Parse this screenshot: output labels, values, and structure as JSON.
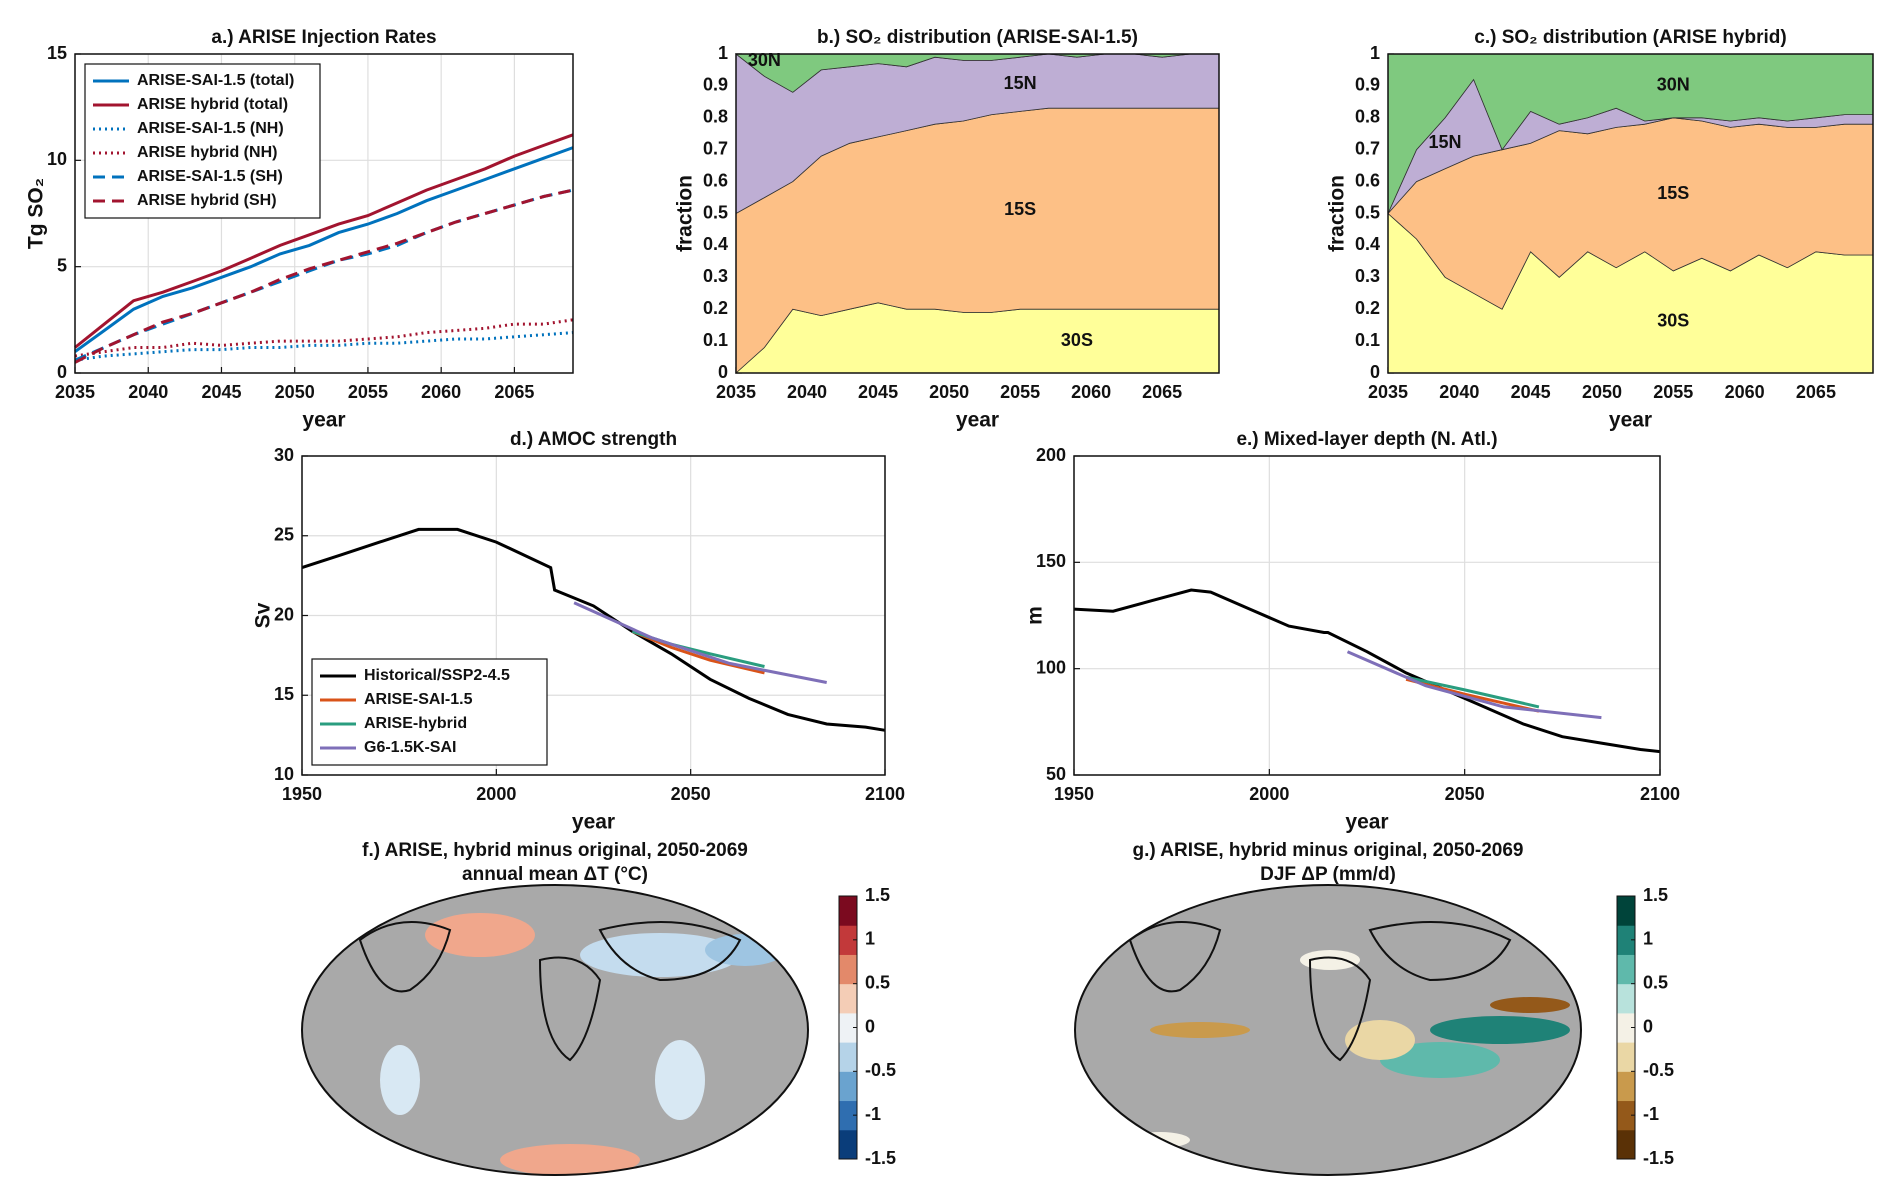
{
  "chart_data": [
    {
      "type": "line",
      "title": "a.) ARISE Injection Rates",
      "xlabel": "year",
      "ylabel": "Tg SO₂",
      "xlim": [
        2035,
        2069
      ],
      "xticks": [
        2035,
        2040,
        2045,
        2050,
        2055,
        2060,
        2065
      ],
      "ylim": [
        0,
        15
      ],
      "yticks": [
        0,
        5,
        10,
        15
      ],
      "grid": true,
      "legend": "upper left",
      "x": [
        2035,
        2037,
        2039,
        2041,
        2043,
        2045,
        2047,
        2049,
        2051,
        2053,
        2055,
        2057,
        2059,
        2061,
        2063,
        2065,
        2067,
        2069
      ],
      "series": [
        {
          "name": "ARISE-SAI-1.5 (total)",
          "color": "#0072bd",
          "linestyle": "solid",
          "values": [
            1.0,
            2.0,
            3.0,
            3.6,
            4.0,
            4.5,
            5.0,
            5.6,
            6.0,
            6.6,
            7.0,
            7.5,
            8.1,
            8.6,
            9.1,
            9.6,
            10.1,
            10.6
          ]
        },
        {
          "name": "ARISE hybrid (total)",
          "color": "#a2142f",
          "linestyle": "solid",
          "values": [
            1.2,
            2.3,
            3.4,
            3.8,
            4.3,
            4.8,
            5.4,
            6.0,
            6.5,
            7.0,
            7.4,
            8.0,
            8.6,
            9.1,
            9.6,
            10.2,
            10.7,
            11.2
          ]
        },
        {
          "name": "ARISE-SAI-1.5 (NH)",
          "color": "#0072bd",
          "linestyle": "dotted",
          "values": [
            0.6,
            0.8,
            0.9,
            1.0,
            1.1,
            1.1,
            1.2,
            1.2,
            1.3,
            1.3,
            1.4,
            1.4,
            1.5,
            1.6,
            1.6,
            1.7,
            1.8,
            1.9
          ]
        },
        {
          "name": "ARISE hybrid (NH)",
          "color": "#a2142f",
          "linestyle": "dotted",
          "values": [
            0.8,
            1.0,
            1.2,
            1.2,
            1.4,
            1.3,
            1.4,
            1.5,
            1.5,
            1.5,
            1.6,
            1.7,
            1.9,
            2.0,
            2.1,
            2.3,
            2.3,
            2.5
          ]
        },
        {
          "name": "ARISE-SAI-1.5 (SH)",
          "color": "#0072bd",
          "linestyle": "dashed",
          "values": [
            0.6,
            1.2,
            1.8,
            2.3,
            2.8,
            3.3,
            3.8,
            4.3,
            4.8,
            5.3,
            5.6,
            6.0,
            6.6,
            7.1,
            7.5,
            7.9,
            8.3,
            8.6
          ]
        },
        {
          "name": "ARISE hybrid (SH)",
          "color": "#a2142f",
          "linestyle": "dashed",
          "values": [
            0.5,
            1.2,
            1.8,
            2.4,
            2.8,
            3.3,
            3.8,
            4.4,
            4.9,
            5.3,
            5.7,
            6.1,
            6.6,
            7.1,
            7.5,
            7.9,
            8.3,
            8.6
          ]
        }
      ]
    },
    {
      "type": "area",
      "title": "b.) SO₂ distribution (ARISE-SAI-1.5)",
      "xlabel": "year",
      "ylabel": "fraction",
      "xlim": [
        2035,
        2069
      ],
      "xticks": [
        2035,
        2040,
        2045,
        2050,
        2055,
        2060,
        2065
      ],
      "ylim": [
        0,
        1
      ],
      "yticks": [
        0,
        0.1,
        0.2,
        0.3,
        0.4,
        0.5,
        0.6,
        0.7,
        0.8,
        0.9,
        1
      ],
      "grid": false,
      "x": [
        2035,
        2037,
        2039,
        2041,
        2043,
        2045,
        2047,
        2049,
        2051,
        2053,
        2055,
        2057,
        2059,
        2061,
        2063,
        2065,
        2067,
        2069
      ],
      "series": [
        {
          "name": "30S",
          "color": "#ffff99",
          "values": [
            0,
            0.08,
            0.2,
            0.18,
            0.2,
            0.22,
            0.2,
            0.2,
            0.19,
            0.19,
            0.2,
            0.2,
            0.2,
            0.2,
            0.2,
            0.2,
            0.2,
            0.2
          ]
        },
        {
          "name": "15S",
          "color": "#fdc086",
          "values": [
            0.5,
            0.47,
            0.4,
            0.5,
            0.52,
            0.52,
            0.56,
            0.58,
            0.6,
            0.62,
            0.62,
            0.63,
            0.63,
            0.63,
            0.63,
            0.63,
            0.63,
            0.63
          ]
        },
        {
          "name": "15N",
          "color": "#beaed4",
          "values": [
            0.5,
            0.38,
            0.28,
            0.27,
            0.24,
            0.23,
            0.2,
            0.21,
            0.19,
            0.17,
            0.17,
            0.17,
            0.16,
            0.17,
            0.17,
            0.16,
            0.17,
            0.17
          ]
        },
        {
          "name": "30N",
          "color": "#7fc97f",
          "values": [
            0,
            0.07,
            0.12,
            0.05,
            0.04,
            0.03,
            0.04,
            0.01,
            0.02,
            0.02,
            0.01,
            0,
            0.01,
            0,
            0,
            0.01,
            0,
            0
          ]
        }
      ]
    },
    {
      "type": "area",
      "title": "c.) SO₂ distribution (ARISE hybrid)",
      "xlabel": "year",
      "ylabel": "fraction",
      "xlim": [
        2035,
        2069
      ],
      "xticks": [
        2035,
        2040,
        2045,
        2050,
        2055,
        2060,
        2065
      ],
      "ylim": [
        0,
        1
      ],
      "yticks": [
        0,
        0.1,
        0.2,
        0.3,
        0.4,
        0.5,
        0.6,
        0.7,
        0.8,
        0.9,
        1
      ],
      "grid": false,
      "x": [
        2035,
        2037,
        2039,
        2041,
        2043,
        2045,
        2047,
        2049,
        2051,
        2053,
        2055,
        2057,
        2059,
        2061,
        2063,
        2065,
        2067,
        2069
      ],
      "series": [
        {
          "name": "30S",
          "color": "#ffff99",
          "values": [
            0.5,
            0.42,
            0.3,
            0.25,
            0.2,
            0.38,
            0.3,
            0.38,
            0.33,
            0.38,
            0.32,
            0.36,
            0.32,
            0.37,
            0.33,
            0.38,
            0.37,
            0.37
          ]
        },
        {
          "name": "15S",
          "color": "#fdc086",
          "values": [
            0,
            0.18,
            0.34,
            0.43,
            0.5,
            0.34,
            0.46,
            0.37,
            0.44,
            0.4,
            0.48,
            0.43,
            0.45,
            0.41,
            0.44,
            0.39,
            0.41,
            0.41
          ]
        },
        {
          "name": "15N",
          "color": "#beaed4",
          "values": [
            0,
            0.1,
            0.16,
            0.24,
            0,
            0.1,
            0.02,
            0.05,
            0.06,
            0.01,
            0,
            0.01,
            0.02,
            0.02,
            0.02,
            0.03,
            0.03,
            0.03
          ]
        },
        {
          "name": "30N",
          "color": "#7fc97f",
          "values": [
            0.5,
            0.3,
            0.2,
            0.08,
            0.3,
            0.18,
            0.22,
            0.2,
            0.17,
            0.21,
            0.2,
            0.2,
            0.21,
            0.2,
            0.21,
            0.2,
            0.19,
            0.19
          ]
        }
      ]
    },
    {
      "type": "line",
      "title": "d.) AMOC strength",
      "xlabel": "year",
      "ylabel": "Sv",
      "xlim": [
        1950,
        2100
      ],
      "xticks": [
        1950,
        2000,
        2050,
        2100
      ],
      "ylim": [
        10,
        30
      ],
      "yticks": [
        10,
        15,
        20,
        25,
        30
      ],
      "grid": true,
      "legend": "lower left",
      "series": [
        {
          "name": "Historical/SSP2-4.5",
          "color": "#000000",
          "linestyle": "solid",
          "x": [
            1950,
            1960,
            1970,
            1980,
            1990,
            2000,
            2014,
            2015,
            2025,
            2035,
            2045,
            2055,
            2065,
            2075,
            2085,
            2095,
            2100
          ],
          "values": [
            23,
            23.8,
            24.6,
            25.4,
            25.4,
            24.6,
            23,
            21.6,
            20.6,
            19,
            17.6,
            16,
            14.8,
            13.8,
            13.2,
            13,
            12.8
          ]
        },
        {
          "name": "ARISE-SAI-1.5",
          "color": "#d95319",
          "linestyle": "solid",
          "x": [
            2035,
            2045,
            2055,
            2069
          ],
          "values": [
            19,
            18,
            17.2,
            16.4
          ]
        },
        {
          "name": "ARISE-hybrid",
          "color": "#2a9d7f",
          "linestyle": "solid",
          "x": [
            2035,
            2045,
            2055,
            2069
          ],
          "values": [
            19,
            18.2,
            17.6,
            16.8
          ]
        },
        {
          "name": "G6-1.5K-SAI",
          "color": "#7e6fb8",
          "linestyle": "solid",
          "x": [
            2020,
            2040,
            2060,
            2085
          ],
          "values": [
            20.8,
            18.6,
            17,
            15.8
          ]
        }
      ]
    },
    {
      "type": "line",
      "title": "e.) Mixed-layer depth (N. Atl.)",
      "xlabel": "year",
      "ylabel": "m",
      "xlim": [
        1950,
        2100
      ],
      "xticks": [
        1950,
        2000,
        2050,
        2100
      ],
      "ylim": [
        50,
        200
      ],
      "yticks": [
        50,
        100,
        150,
        200
      ],
      "grid": true,
      "series": [
        {
          "color": "#000000",
          "linestyle": "solid",
          "x": [
            1950,
            1960,
            1970,
            1980,
            1985,
            1995,
            2005,
            2014,
            2015,
            2025,
            2035,
            2045,
            2055,
            2065,
            2075,
            2085,
            2095,
            2100
          ],
          "values": [
            128,
            127,
            132,
            137,
            136,
            128,
            120,
            117,
            117,
            108,
            98,
            90,
            82,
            74,
            68,
            65,
            62,
            61
          ]
        },
        {
          "color": "#d95319",
          "linestyle": "solid",
          "x": [
            2035,
            2050,
            2069
          ],
          "values": [
            95,
            88,
            80
          ]
        },
        {
          "color": "#2a9d7f",
          "linestyle": "solid",
          "x": [
            2035,
            2050,
            2069
          ],
          "values": [
            96,
            90,
            82
          ]
        },
        {
          "color": "#7e6fb8",
          "linestyle": "solid",
          "x": [
            2020,
            2040,
            2060,
            2085
          ],
          "values": [
            108,
            92,
            82,
            77
          ]
        }
      ]
    },
    {
      "type": "map",
      "title": "f.) ARISE, hybrid minus original, 2050-2069",
      "subtitle": "annual mean ΔT (°C)",
      "clim": [
        -1.5,
        1.5
      ],
      "cticks": [
        -1.5,
        -1,
        -0.5,
        0,
        0.5,
        1,
        1.5
      ],
      "colormap": [
        "#0a3d7a",
        "#2f6eb0",
        "#6aa3cf",
        "#b5d3e8",
        "#eef2f5",
        "#f4cdb6",
        "#e3896a",
        "#c2393a",
        "#7b0a1f"
      ]
    },
    {
      "type": "map",
      "title": "g.) ARISE, hybrid minus original, 2050-2069",
      "subtitle": "DJF ΔP (mm/d)",
      "clim": [
        -1.5,
        1.5
      ],
      "cticks": [
        -1.5,
        -1,
        -0.5,
        0,
        0.5,
        1,
        1.5
      ],
      "colormap": [
        "#5a3106",
        "#94591a",
        "#c99a4c",
        "#ead7a5",
        "#f4f1e6",
        "#b8e2dc",
        "#5fb9ab",
        "#1f8277",
        "#00443a"
      ]
    }
  ]
}
